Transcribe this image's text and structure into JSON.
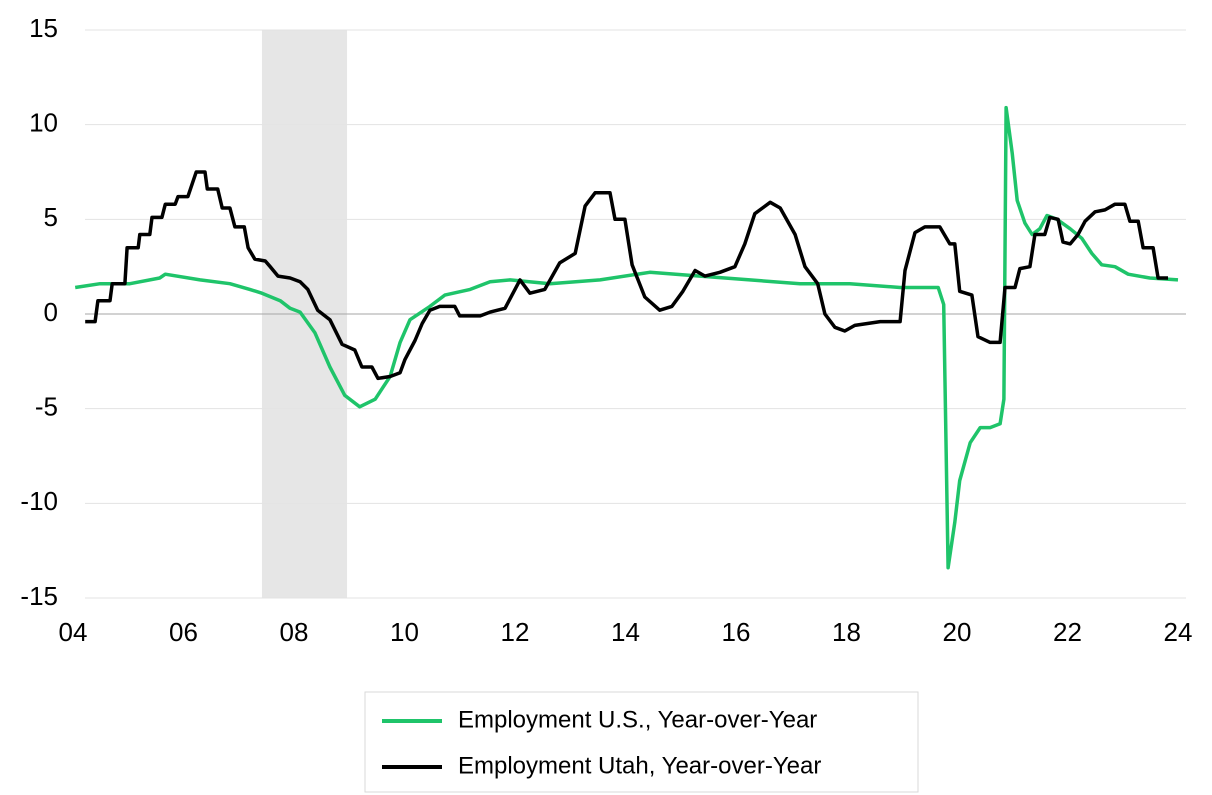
{
  "chart_data": {
    "type": "line",
    "xlim": [
      4.0,
      24.2
    ],
    "xticks": [
      {
        "value": 4,
        "label": "04"
      },
      {
        "value": 6,
        "label": "06"
      },
      {
        "value": 8,
        "label": "08"
      },
      10,
      12,
      14,
      16,
      18,
      20,
      22,
      24
    ],
    "ylim": [
      -15,
      15
    ],
    "yticks": [
      15,
      10,
      5,
      0,
      -5,
      -10,
      -15
    ],
    "grid": true,
    "shade": [
      7.42,
      8.96
    ],
    "shade_color": "#e6e6e6",
    "legend": "bottom",
    "series": [
      {
        "name": "Employment U.S., Year-over-Year",
        "color": "#1fc46a",
        "x": [
          4.04,
          4.49,
          5.03,
          5.57,
          5.67,
          6.3,
          6.84,
          7.2,
          7.42,
          7.75,
          7.93,
          8.11,
          8.38,
          8.65,
          8.92,
          9.19,
          9.47,
          9.74,
          9.92,
          10.1,
          10.46,
          10.73,
          11.19,
          11.55,
          11.91,
          12.63,
          13.54,
          14.44,
          15.35,
          16.25,
          17.16,
          18.06,
          18.97,
          19.66,
          19.76,
          19.84,
          19.96,
          20.05,
          20.24,
          20.42,
          20.6,
          20.78,
          20.85,
          20.89,
          21.0,
          21.09,
          21.23,
          21.36,
          21.5,
          21.63,
          21.81,
          22.05,
          22.26,
          22.44,
          22.62,
          22.86,
          23.1,
          23.49,
          24.0
        ],
        "values": [
          1.4,
          1.6,
          1.6,
          1.9,
          2.1,
          1.8,
          1.6,
          1.3,
          1.1,
          0.7,
          0.3,
          0.1,
          -1.0,
          -2.8,
          -4.3,
          -4.9,
          -4.5,
          -3.3,
          -1.5,
          -0.3,
          0.4,
          1.0,
          1.3,
          1.7,
          1.8,
          1.6,
          1.8,
          2.2,
          2.0,
          1.8,
          1.6,
          1.6,
          1.4,
          1.4,
          0.5,
          -13.4,
          -11.0,
          -8.8,
          -6.8,
          -6.0,
          -6.0,
          -5.8,
          -4.5,
          10.9,
          8.5,
          6.0,
          4.8,
          4.2,
          4.5,
          5.2,
          5.0,
          4.5,
          4.0,
          3.2,
          2.6,
          2.5,
          2.1,
          1.9,
          1.8
        ]
      },
      {
        "name": "Employment Utah, Year-over-Year",
        "color": "#000000",
        "x": [
          4.22,
          4.4,
          4.45,
          4.67,
          4.71,
          4.94,
          4.98,
          5.18,
          5.21,
          5.39,
          5.43,
          5.61,
          5.67,
          5.85,
          5.9,
          6.08,
          6.23,
          6.39,
          6.43,
          6.62,
          6.7,
          6.84,
          6.93,
          7.1,
          7.17,
          7.29,
          7.48,
          7.57,
          7.71,
          7.93,
          8.11,
          8.25,
          8.43,
          8.65,
          8.87,
          9.1,
          9.23,
          9.41,
          9.52,
          9.74,
          9.92,
          10.01,
          10.19,
          10.32,
          10.46,
          10.64,
          10.91,
          11.0,
          11.37,
          11.55,
          11.82,
          12.09,
          12.27,
          12.54,
          12.81,
          13.09,
          13.27,
          13.45,
          13.72,
          13.81,
          13.99,
          14.12,
          14.35,
          14.62,
          14.84,
          15.04,
          15.26,
          15.44,
          15.71,
          15.98,
          16.16,
          16.34,
          16.62,
          16.8,
          17.07,
          17.25,
          17.48,
          17.61,
          17.79,
          17.97,
          18.15,
          18.61,
          18.97,
          19.06,
          19.24,
          19.42,
          19.69,
          19.87,
          19.96,
          20.05,
          20.27,
          20.38,
          20.6,
          20.78,
          20.87,
          21.05,
          21.14,
          21.32,
          21.41,
          21.59,
          21.68,
          21.83,
          21.92,
          22.05,
          22.19,
          22.32,
          22.5,
          22.68,
          22.86,
          23.04,
          23.13,
          23.28,
          23.37,
          23.55,
          23.64,
          23.82
        ],
        "values": [
          -0.4,
          -0.4,
          0.7,
          0.7,
          1.6,
          1.6,
          3.5,
          3.5,
          4.2,
          4.2,
          5.1,
          5.1,
          5.8,
          5.8,
          6.2,
          6.2,
          7.5,
          7.5,
          6.6,
          6.6,
          5.6,
          5.6,
          4.6,
          4.6,
          3.5,
          2.9,
          2.8,
          2.5,
          2.0,
          1.9,
          1.7,
          1.3,
          0.2,
          -0.3,
          -1.6,
          -1.9,
          -2.8,
          -2.8,
          -3.4,
          -3.3,
          -3.1,
          -2.4,
          -1.4,
          -0.5,
          0.2,
          0.4,
          0.4,
          -0.1,
          -0.1,
          0.1,
          0.3,
          1.8,
          1.1,
          1.3,
          2.7,
          3.2,
          5.7,
          6.4,
          6.4,
          5.0,
          5.0,
          2.6,
          0.9,
          0.2,
          0.4,
          1.2,
          2.3,
          2.0,
          2.2,
          2.5,
          3.7,
          5.3,
          5.9,
          5.6,
          4.2,
          2.5,
          1.6,
          0.0,
          -0.7,
          -0.9,
          -0.6,
          -0.4,
          -0.4,
          2.3,
          4.3,
          4.6,
          4.6,
          3.7,
          3.7,
          1.2,
          1.0,
          -1.2,
          -1.5,
          -1.5,
          1.4,
          1.4,
          2.4,
          2.5,
          4.2,
          4.2,
          5.1,
          5.0,
          3.8,
          3.7,
          4.2,
          4.9,
          5.4,
          5.5,
          5.8,
          5.8,
          4.9,
          4.9,
          3.5,
          3.5,
          1.9,
          1.9
        ]
      }
    ]
  }
}
